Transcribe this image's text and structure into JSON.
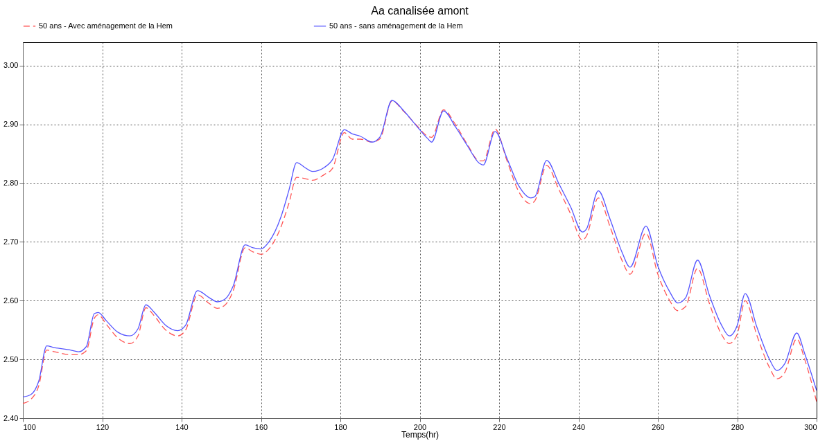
{
  "chart_data": {
    "type": "line",
    "title": "Aa canalisée amont",
    "xlabel": "Temps(hr)",
    "x": [
      100,
      102,
      104,
      106,
      108,
      112,
      114,
      116,
      118,
      119,
      121,
      124,
      127,
      129,
      131,
      133,
      136,
      139,
      141,
      144,
      147,
      149,
      151,
      153,
      156,
      158,
      160,
      162,
      165,
      167,
      169,
      171,
      173,
      176,
      178,
      181,
      183,
      185,
      188,
      190,
      193,
      196,
      199,
      202,
      203,
      206,
      209,
      212,
      215,
      216,
      219,
      222,
      225,
      228,
      229,
      232,
      235,
      238,
      241,
      242,
      245,
      248,
      251,
      253,
      257,
      260,
      263,
      265,
      267,
      270,
      273,
      276,
      278,
      280,
      282,
      285,
      288,
      290,
      292,
      295,
      297,
      300
    ],
    "series": [
      {
        "name": "50 ans - Avec aménagement de la Hem",
        "color": "#ff5555",
        "line_style": "dashed",
        "values": [
          2.425,
          2.432,
          2.455,
          2.516,
          2.513,
          2.508,
          2.508,
          2.515,
          2.57,
          2.576,
          2.56,
          2.536,
          2.527,
          2.54,
          2.588,
          2.575,
          2.55,
          2.54,
          2.55,
          2.61,
          2.595,
          2.587,
          2.593,
          2.617,
          2.69,
          2.683,
          2.679,
          2.688,
          2.725,
          2.765,
          2.81,
          2.808,
          2.805,
          2.815,
          2.825,
          2.886,
          2.875,
          2.875,
          2.87,
          2.876,
          2.94,
          2.922,
          2.9,
          2.88,
          2.878,
          2.925,
          2.9,
          2.866,
          2.838,
          2.838,
          2.892,
          2.838,
          2.785,
          2.765,
          2.77,
          2.83,
          2.79,
          2.748,
          2.703,
          2.71,
          2.775,
          2.725,
          2.668,
          2.645,
          2.715,
          2.645,
          2.6,
          2.583,
          2.59,
          2.655,
          2.595,
          2.543,
          2.527,
          2.543,
          2.6,
          2.54,
          2.488,
          2.467,
          2.478,
          2.535,
          2.5,
          2.428
        ]
      },
      {
        "name": "50 ans - sans aménagement de la Hem",
        "color": "#5555ff",
        "line_style": "solid",
        "values": [
          2.436,
          2.44,
          2.463,
          2.523,
          2.52,
          2.516,
          2.513,
          2.522,
          2.578,
          2.58,
          2.566,
          2.546,
          2.54,
          2.552,
          2.593,
          2.581,
          2.558,
          2.549,
          2.558,
          2.617,
          2.605,
          2.598,
          2.603,
          2.625,
          2.695,
          2.69,
          2.688,
          2.7,
          2.742,
          2.787,
          2.835,
          2.827,
          2.82,
          2.827,
          2.84,
          2.891,
          2.884,
          2.88,
          2.87,
          2.879,
          2.941,
          2.923,
          2.899,
          2.876,
          2.87,
          2.923,
          2.896,
          2.864,
          2.834,
          2.831,
          2.888,
          2.842,
          2.795,
          2.775,
          2.777,
          2.839,
          2.8,
          2.76,
          2.717,
          2.722,
          2.787,
          2.738,
          2.682,
          2.657,
          2.727,
          2.659,
          2.615,
          2.596,
          2.605,
          2.669,
          2.609,
          2.559,
          2.54,
          2.558,
          2.612,
          2.554,
          2.502,
          2.481,
          2.493,
          2.545,
          2.51,
          2.447
        ]
      }
    ],
    "xlim": [
      100,
      300
    ],
    "xticks": [
      100,
      120,
      140,
      160,
      180,
      200,
      220,
      240,
      260,
      280,
      300
    ],
    "ylim": [
      2.4,
      3.04
    ],
    "yticks": [
      {
        "value": 2.4,
        "label": "2.40"
      },
      {
        "value": 2.5,
        "label": "2.50"
      },
      {
        "value": 2.6,
        "label": "2.60"
      },
      {
        "value": 2.7,
        "label": "2.70"
      },
      {
        "value": 2.8,
        "label": "2.80"
      },
      {
        "value": 2.9,
        "label": "2.90"
      },
      {
        "value": 3.0,
        "label": "3.00"
      }
    ],
    "grid": true,
    "legend": "top left"
  }
}
